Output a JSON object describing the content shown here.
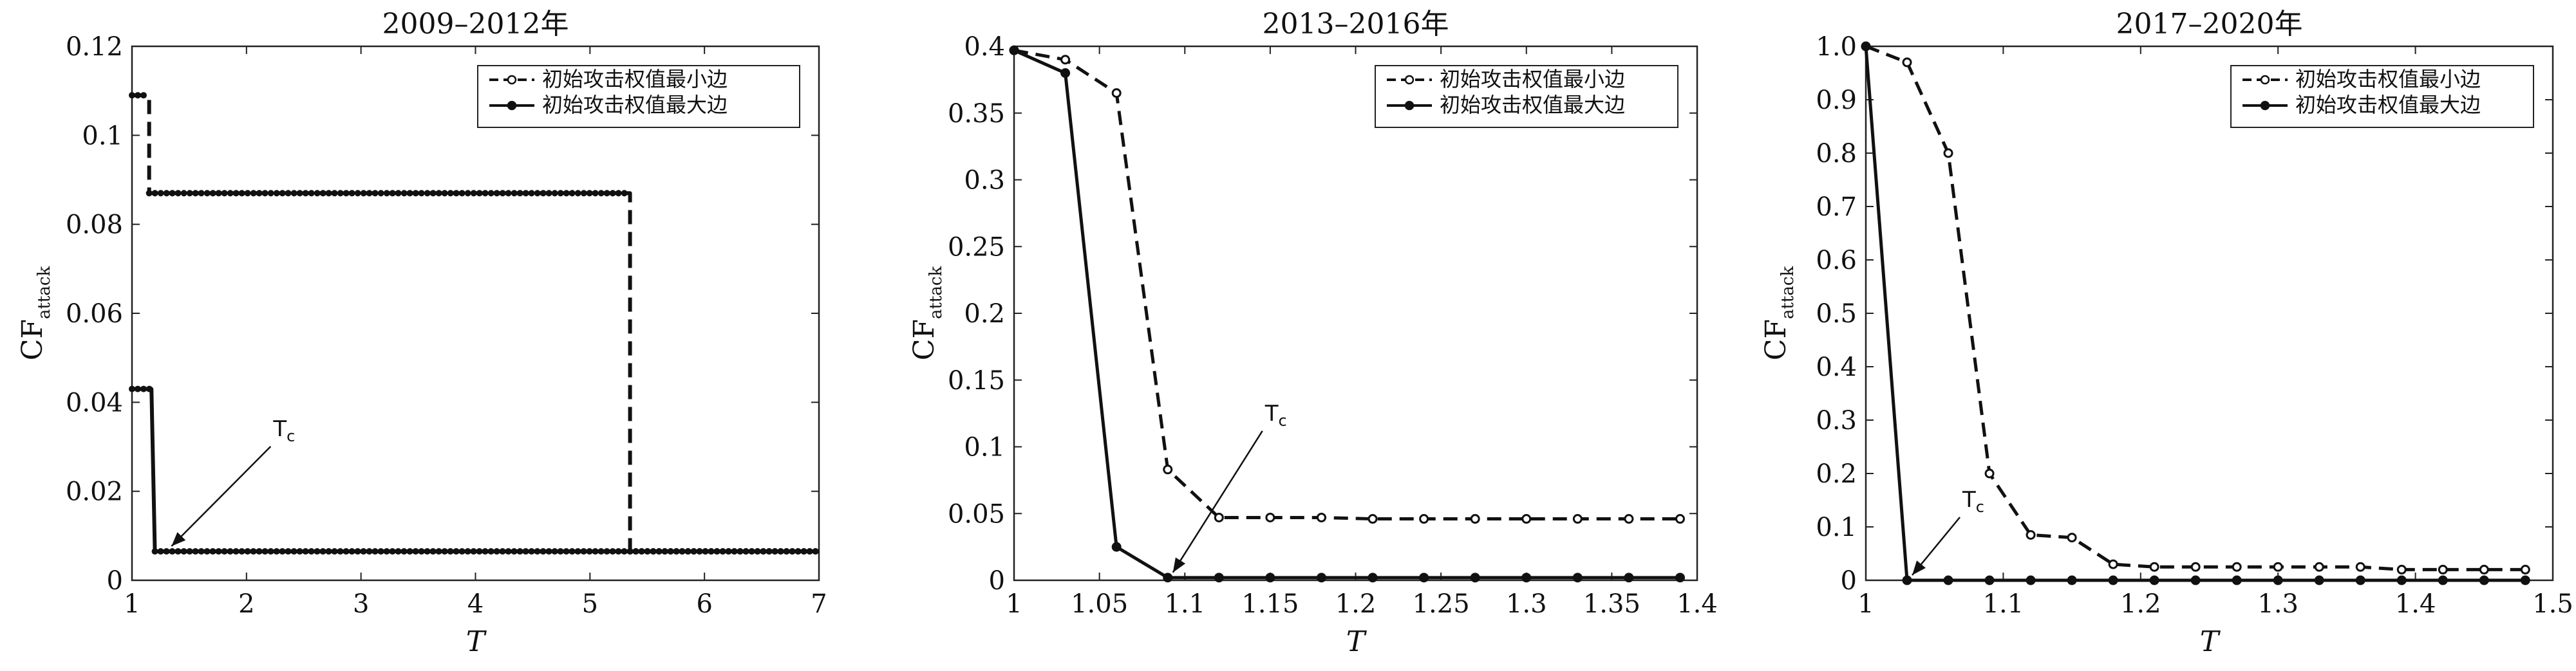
{
  "chart_data": [
    {
      "type": "line",
      "title": "2009–2012年",
      "xlabel": "T",
      "ylabel": "CF",
      "ylabel_sub": "attack",
      "xlim": [
        1,
        7
      ],
      "ylim": [
        0,
        0.12
      ],
      "xticks": [
        1,
        2,
        3,
        4,
        5,
        6,
        7
      ],
      "xtick_labels": [
        "1",
        "2",
        "3",
        "4",
        "5",
        "6",
        "7"
      ],
      "yticks": [
        0,
        0.02,
        0.04,
        0.06,
        0.08,
        0.1,
        0.12
      ],
      "ytick_labels": [
        "0",
        "0.02",
        "0.04",
        "0.06",
        "0.08",
        "0.1",
        "0.12"
      ],
      "legend_position": "top-right",
      "annotation": {
        "text": "T",
        "sub": "c",
        "x": 1.3,
        "y": 0.0065
      },
      "series": [
        {
          "name": "初始攻击权值最小边",
          "style": "dashed",
          "x": [
            1,
            1.15,
            1.15,
            5.35,
            5.35,
            7
          ],
          "y": [
            0.109,
            0.109,
            0.087,
            0.087,
            0.0065,
            0.0065
          ]
        },
        {
          "name": "初始攻击权值最大边",
          "style": "solid",
          "x": [
            1,
            1.17,
            1.2,
            7
          ],
          "y": [
            0.043,
            0.043,
            0.0065,
            0.0065
          ]
        }
      ]
    },
    {
      "type": "line",
      "title": "2013–2016年",
      "xlabel": "T",
      "ylabel": "CF",
      "ylabel_sub": "attack",
      "xlim": [
        1,
        1.4
      ],
      "ylim": [
        0,
        0.4
      ],
      "xticks": [
        1,
        1.05,
        1.1,
        1.15,
        1.2,
        1.25,
        1.3,
        1.35,
        1.4
      ],
      "xtick_labels": [
        "1",
        "1.05",
        "1.1",
        "1.15",
        "1.2",
        "1.25",
        "1.3",
        "1.35",
        "1.4"
      ],
      "yticks": [
        0,
        0.05,
        0.1,
        0.15,
        0.2,
        0.25,
        0.3,
        0.35,
        0.4
      ],
      "ytick_labels": [
        "0",
        "0.05",
        "0.1",
        "0.15",
        "0.2",
        "0.25",
        "0.3",
        "0.35",
        "0.4"
      ],
      "legend_position": "top-right",
      "annotation": {
        "text": "T",
        "sub": "c",
        "x": 1.09,
        "y": 0.002
      },
      "series": [
        {
          "name": "初始攻击权值最小边",
          "style": "dashed",
          "x": [
            1,
            1.03,
            1.06,
            1.09,
            1.12,
            1.15,
            1.18,
            1.21,
            1.24,
            1.27,
            1.3,
            1.33,
            1.36,
            1.39
          ],
          "y": [
            0.397,
            0.39,
            0.365,
            0.083,
            0.047,
            0.047,
            0.047,
            0.046,
            0.046,
            0.046,
            0.046,
            0.046,
            0.046,
            0.046
          ]
        },
        {
          "name": "初始攻击权值最大边",
          "style": "solid",
          "x": [
            1,
            1.03,
            1.06,
            1.09,
            1.12,
            1.15,
            1.18,
            1.21,
            1.24,
            1.27,
            1.3,
            1.33,
            1.36,
            1.39
          ],
          "y": [
            0.397,
            0.38,
            0.025,
            0.002,
            0.002,
            0.002,
            0.002,
            0.002,
            0.002,
            0.002,
            0.002,
            0.002,
            0.002,
            0.002
          ]
        }
      ]
    },
    {
      "type": "line",
      "title": "2017–2020年",
      "xlabel": "T",
      "ylabel": "CF",
      "ylabel_sub": "attack",
      "xlim": [
        1,
        1.5
      ],
      "ylim": [
        0,
        1
      ],
      "xticks": [
        1,
        1.1,
        1.2,
        1.3,
        1.4,
        1.5
      ],
      "xtick_labels": [
        "1",
        "1.1",
        "1.2",
        "1.3",
        "1.4",
        "1.5"
      ],
      "yticks": [
        0,
        0.1,
        0.2,
        0.3,
        0.4,
        0.5,
        0.6,
        0.7,
        0.8,
        0.9,
        1
      ],
      "ytick_labels": [
        "0",
        "0.1",
        "0.2",
        "0.3",
        "0.4",
        "0.5",
        "0.6",
        "0.7",
        "0.8",
        "0.9",
        "1.0"
      ],
      "legend_position": "top-right",
      "annotation": {
        "text": "T",
        "sub": "c",
        "x": 1.03,
        "y": 0.0
      },
      "series": [
        {
          "name": "初始攻击权值最小边",
          "style": "dashed",
          "x": [
            1,
            1.03,
            1.06,
            1.09,
            1.12,
            1.15,
            1.18,
            1.21,
            1.24,
            1.27,
            1.3,
            1.33,
            1.36,
            1.39,
            1.42,
            1.45,
            1.48
          ],
          "y": [
            1.0,
            0.97,
            0.8,
            0.2,
            0.085,
            0.08,
            0.03,
            0.025,
            0.025,
            0.025,
            0.025,
            0.025,
            0.025,
            0.02,
            0.02,
            0.02,
            0.02
          ]
        },
        {
          "name": "初始攻击权值最大边",
          "style": "solid",
          "x": [
            1,
            1.03,
            1.06,
            1.09,
            1.12,
            1.15,
            1.18,
            1.21,
            1.24,
            1.27,
            1.3,
            1.33,
            1.36,
            1.39,
            1.42,
            1.45,
            1.48
          ],
          "y": [
            1.0,
            0.0,
            0.0,
            0.0,
            0.0,
            0.0,
            0.0,
            0.0,
            0.0,
            0.0,
            0.0,
            0.0,
            0.0,
            0.0,
            0.0,
            0.0,
            0.0
          ]
        }
      ]
    }
  ]
}
